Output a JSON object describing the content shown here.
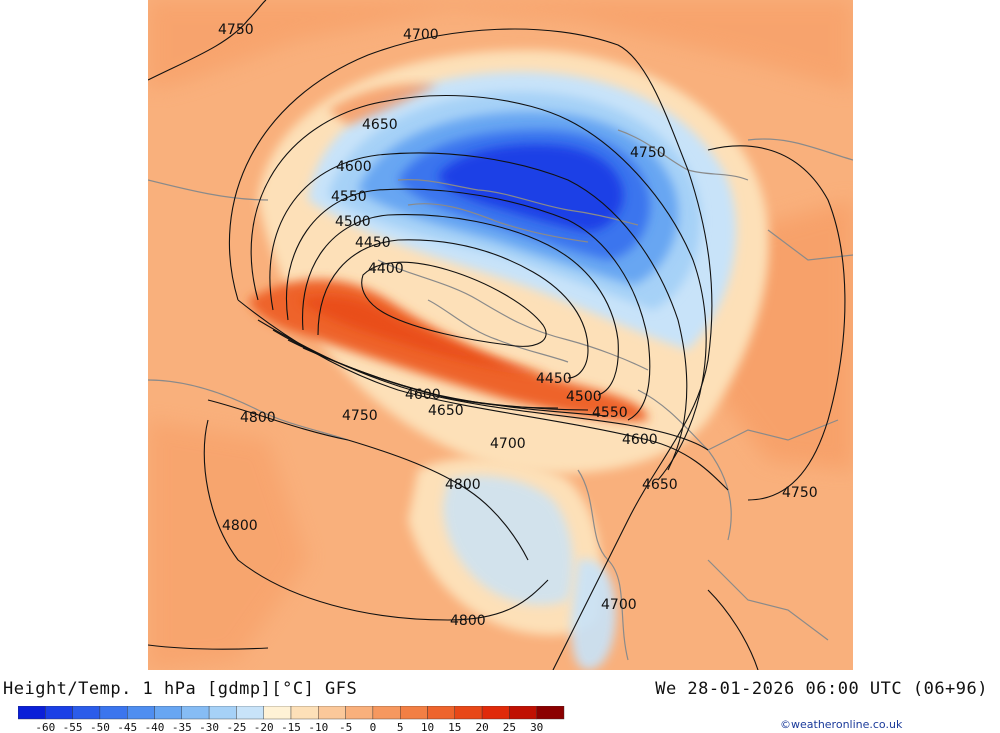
{
  "title": "Height/Temp. 1 hPa [gdmp][°C] GFS",
  "datetime": "We 28-01-2026 06:00 UTC (06+96)",
  "credit": "©weatheronline.co.uk",
  "colorbar": {
    "ticks": [
      "-60",
      "-55",
      "-50",
      "-45",
      "-40",
      "-35",
      "-30",
      "-25",
      "-20",
      "-15",
      "-10",
      "-5",
      "0",
      "5",
      "10",
      "15",
      "20",
      "25",
      "30"
    ],
    "colors": [
      "#0a1fd8",
      "#1a3fe6",
      "#2b5cea",
      "#3b75ee",
      "#4f8ef0",
      "#68a6f2",
      "#86bcf4",
      "#a6d1f7",
      "#c8e3f9",
      "#fff2d6",
      "#fde0b8",
      "#fbc89a",
      "#f9b07c",
      "#f6985f",
      "#f27f44",
      "#ee642c",
      "#e84818",
      "#e02a0a",
      "#c01002",
      "#8b0000"
    ]
  },
  "contour_labels": [
    "4750",
    "4700",
    "4650",
    "4600",
    "4550",
    "4500",
    "4450",
    "4400",
    "4750",
    "4450",
    "4500",
    "4550",
    "4600",
    "4650",
    "4750",
    "4800",
    "4750",
    "4600",
    "4650",
    "4700",
    "4800",
    "4800",
    "4800",
    "4700"
  ],
  "colors": {
    "background_warm": "#f9b07c",
    "cold_core": "#1a3fe6",
    "contour": "#111111",
    "coastline": "#8a8a8a"
  }
}
